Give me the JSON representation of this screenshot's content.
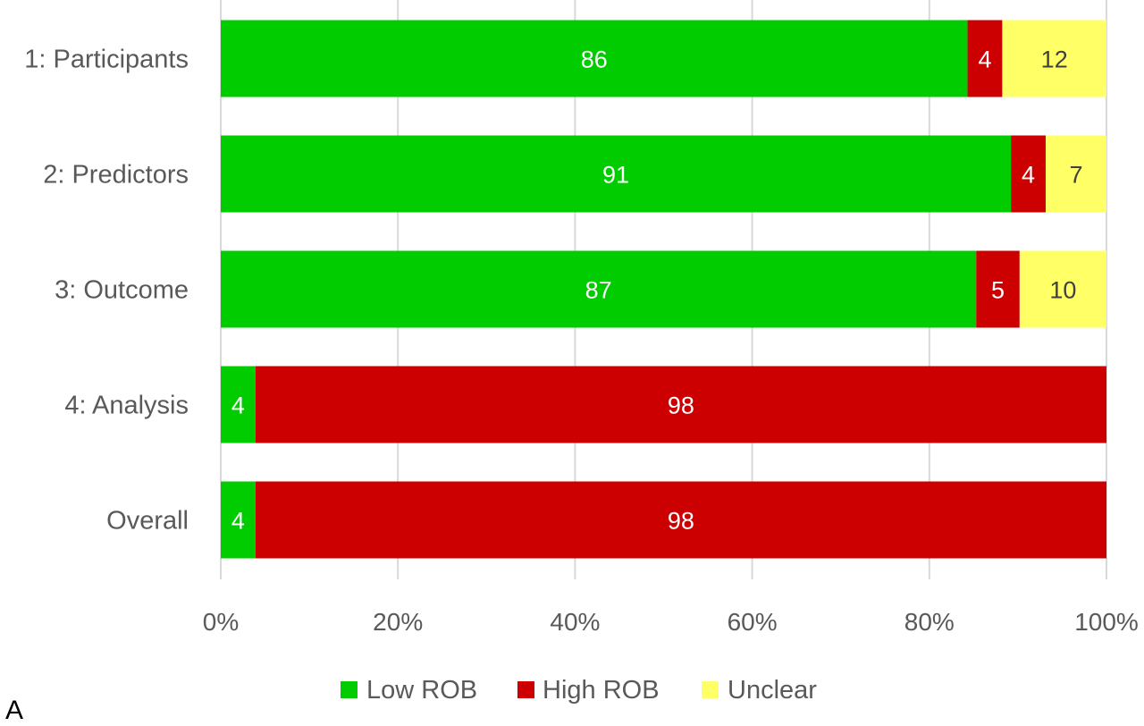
{
  "panel_label": "A",
  "chart_data": {
    "type": "bar",
    "orientation": "horizontal",
    "stacked": true,
    "normalized_percent": true,
    "categories": [
      "1: Participants",
      "2: Predictors",
      "3: Outcome",
      "4: Analysis",
      "Overall"
    ],
    "series": [
      {
        "name": "Low ROB",
        "color": "#00CC00",
        "values": [
          86,
          91,
          87,
          4,
          4
        ]
      },
      {
        "name": "High ROB",
        "color": "#CC0000",
        "values": [
          4,
          4,
          5,
          98,
          98
        ]
      },
      {
        "name": "Unclear",
        "color": "#FFFF66",
        "values": [
          12,
          7,
          10,
          0,
          0
        ]
      }
    ],
    "xlim": [
      0,
      100
    ],
    "x_ticks": [
      "0%",
      "20%",
      "40%",
      "60%",
      "80%",
      "100%"
    ],
    "grid": true,
    "legend": "bottom",
    "title": "",
    "xlabel": "",
    "ylabel": ""
  }
}
